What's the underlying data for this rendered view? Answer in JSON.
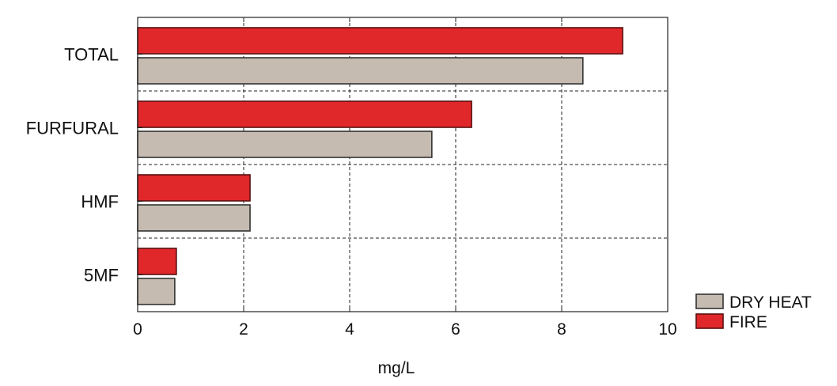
{
  "chart_data": {
    "type": "bar",
    "orientation": "horizontal",
    "categories": [
      "TOTAL",
      "FURFURAL",
      "HMF",
      "5MF"
    ],
    "series": [
      {
        "name": "FIRE",
        "color": "#e0282b",
        "values": [
          9.15,
          6.3,
          2.12,
          0.73
        ]
      },
      {
        "name": "DRY HEAT",
        "color": "#c5bbb0",
        "values": [
          8.4,
          5.55,
          2.12,
          0.7
        ]
      }
    ],
    "xlabel": "mg/L",
    "ylabel": "",
    "xlim": [
      0,
      10
    ],
    "xticks": [
      "0",
      "2",
      "4",
      "6",
      "8",
      "10"
    ],
    "grid": true,
    "legend_position": "bottom-right",
    "legend_order": [
      "DRY HEAT",
      "FIRE"
    ]
  }
}
